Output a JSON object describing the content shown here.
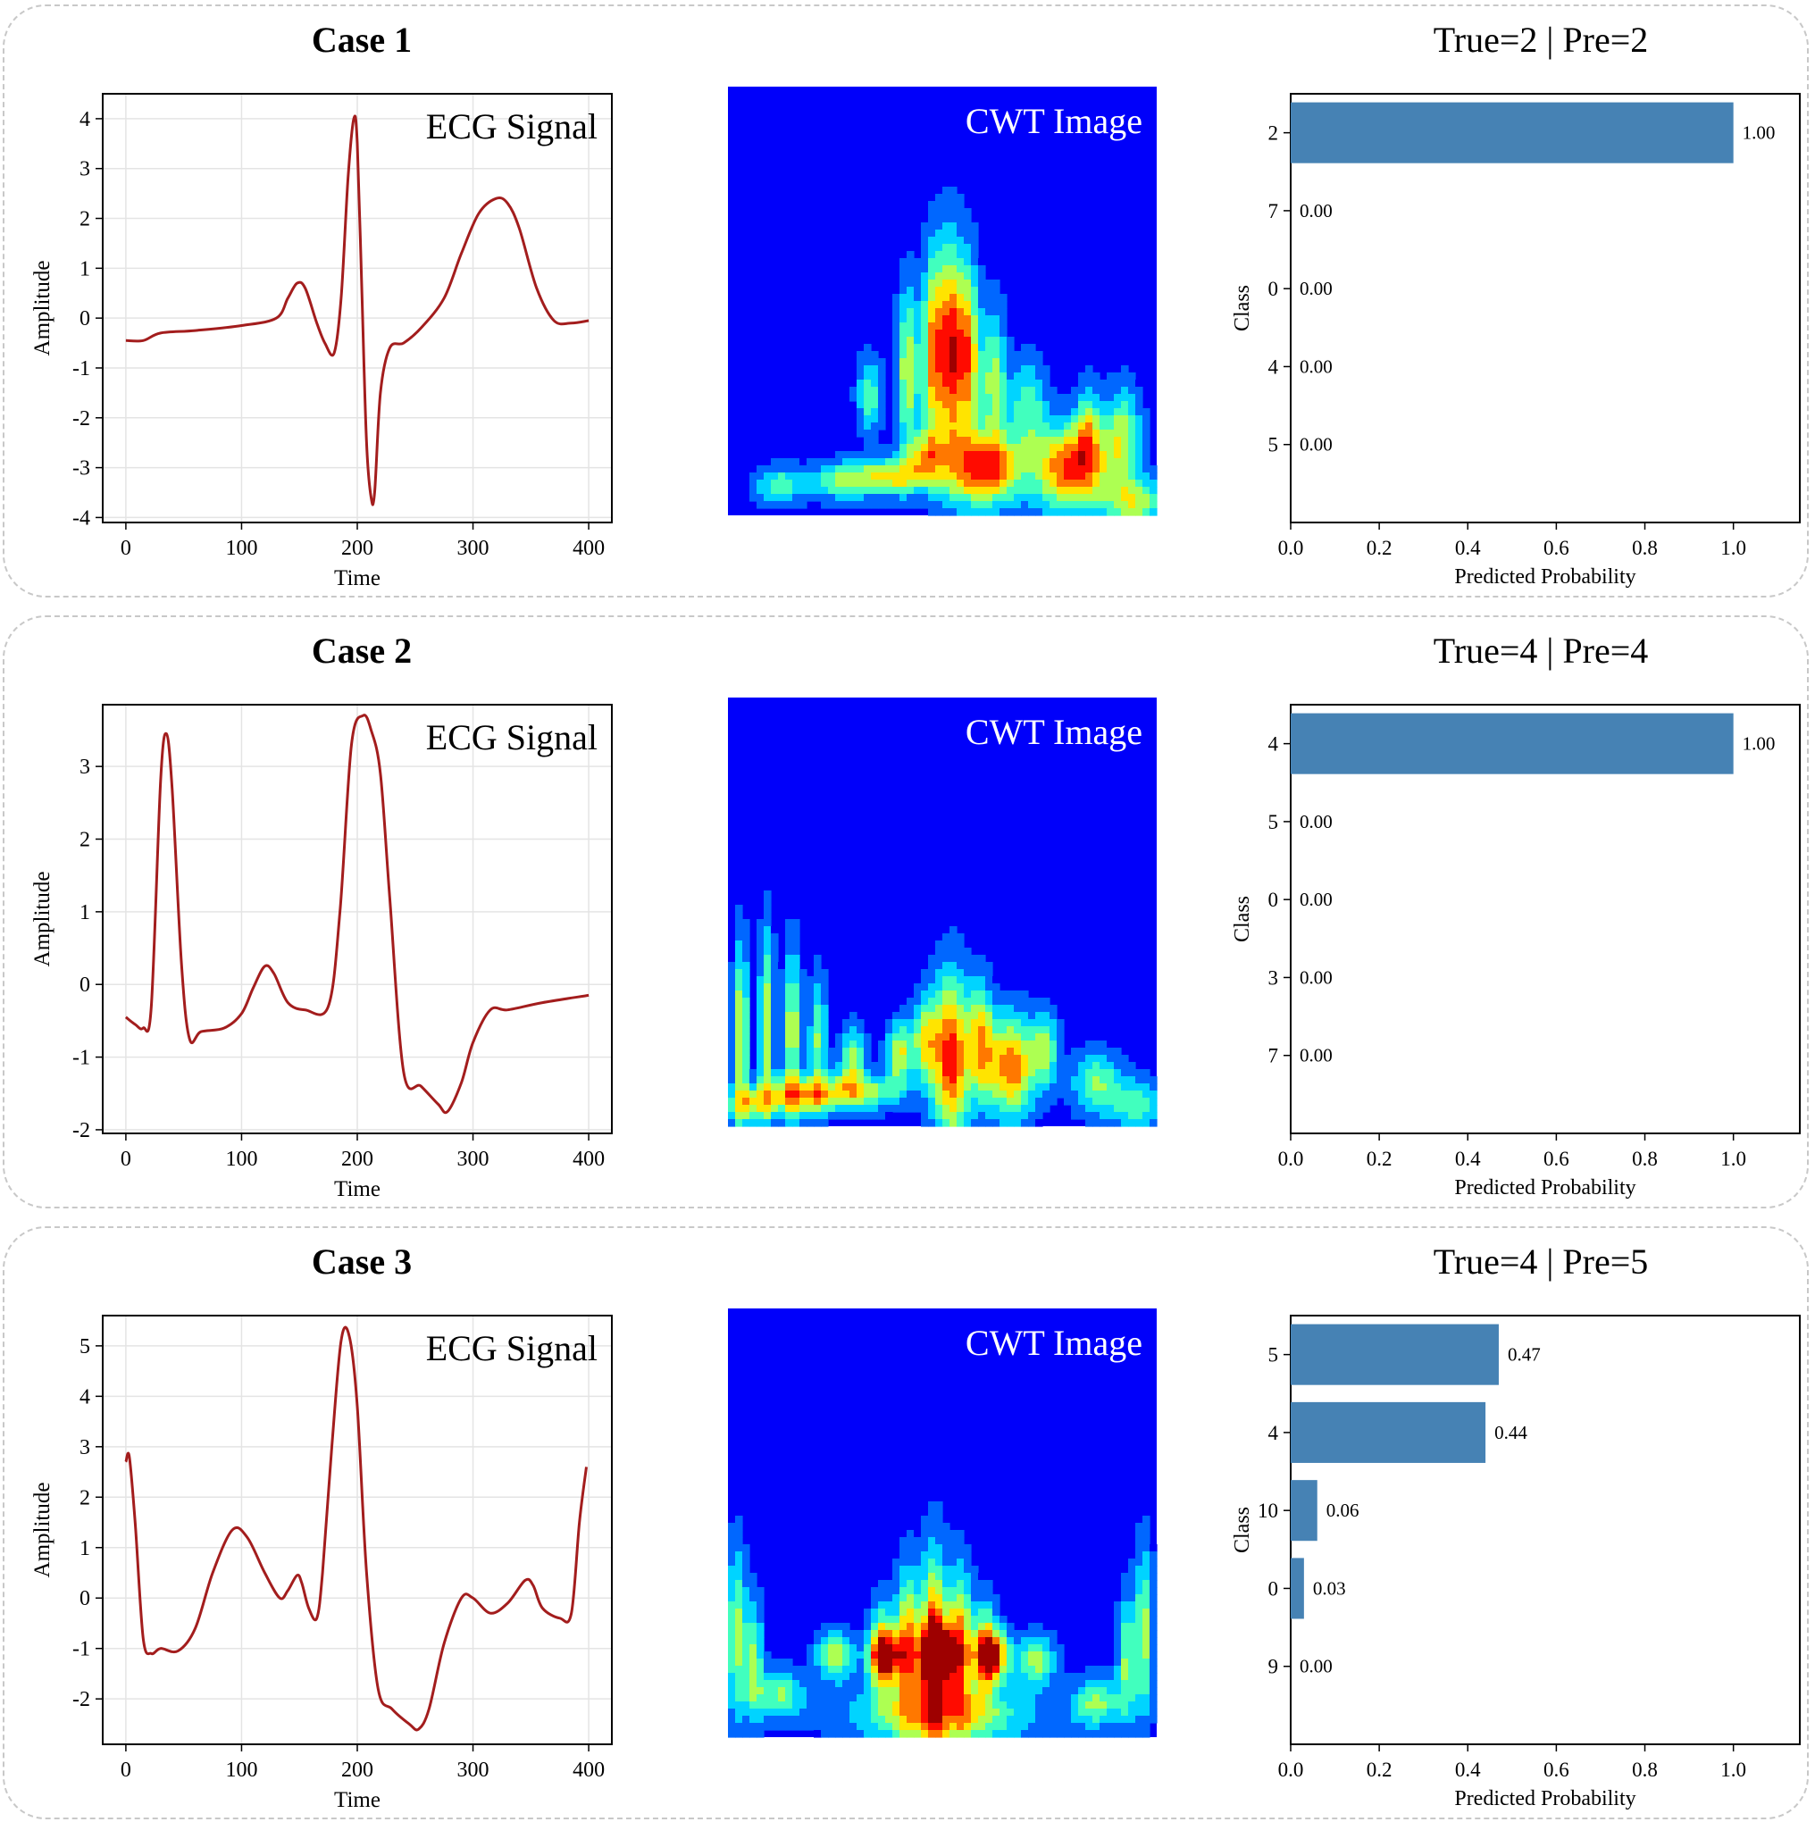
{
  "chart_data": [
    {
      "case_title": "Case 1",
      "result_title": "True=2 | Pre=2",
      "ecg": {
        "type": "line",
        "title": "ECG Signal",
        "xlabel": "Time",
        "ylabel": "Amplitude",
        "xlim": [
          -20,
          420
        ],
        "ylim": [
          -4.1,
          4.5
        ],
        "xticks": [
          "0",
          "100",
          "200",
          "300",
          "400"
        ],
        "yticks": [
          "-4",
          "-3",
          "-2",
          "-1",
          "0",
          "1",
          "2",
          "3",
          "4"
        ],
        "color": "#a31d1d",
        "x": [
          0,
          15,
          30,
          60,
          100,
          130,
          140,
          148,
          155,
          165,
          172,
          180,
          186,
          192,
          197,
          200,
          204,
          208,
          212,
          215,
          220,
          228,
          240,
          255,
          275,
          290,
          305,
          320,
          330,
          340,
          355,
          370,
          385,
          400
        ],
        "y": [
          -0.45,
          -0.45,
          -0.3,
          -0.25,
          -0.15,
          0.0,
          0.4,
          0.7,
          0.6,
          -0.1,
          -0.5,
          -0.7,
          0.4,
          2.8,
          4.0,
          3.5,
          0.5,
          -2.5,
          -3.6,
          -3.5,
          -1.5,
          -0.6,
          -0.5,
          -0.2,
          0.4,
          1.3,
          2.1,
          2.4,
          2.3,
          1.8,
          0.6,
          -0.05,
          -0.1,
          -0.05
        ]
      },
      "cwt": {
        "type": "heatmap",
        "title": "CWT Image"
      },
      "bars": {
        "type": "bar",
        "orientation": "horizontal",
        "xlabel": "Predicted Probability",
        "ylabel": "Class",
        "xlim": [
          0,
          1.15
        ],
        "xticks": [
          "0.0",
          "0.2",
          "0.4",
          "0.6",
          "0.8",
          "1.0"
        ],
        "categories": [
          "2",
          "7",
          "0",
          "4",
          "5"
        ],
        "values": [
          1.0,
          0.0,
          0.0,
          0.0,
          0.0
        ],
        "labels": [
          "1.00",
          "0.00",
          "0.00",
          "0.00",
          "0.00"
        ],
        "color": "#4682b4"
      }
    },
    {
      "case_title": "Case 2",
      "result_title": "True=4 | Pre=4",
      "ecg": {
        "type": "line",
        "title": "ECG Signal",
        "xlabel": "Time",
        "ylabel": "Amplitude",
        "xlim": [
          -20,
          420
        ],
        "ylim": [
          -2.05,
          3.85
        ],
        "xticks": [
          "0",
          "100",
          "200",
          "300",
          "400"
        ],
        "yticks": [
          "-2",
          "-1",
          "0",
          "1",
          "2",
          "3"
        ],
        "color": "#a31d1d",
        "x": [
          0,
          8,
          15,
          22,
          30,
          35,
          40,
          48,
          55,
          65,
          85,
          100,
          110,
          120,
          128,
          140,
          155,
          175,
          185,
          195,
          205,
          212,
          220,
          228,
          240,
          255,
          270,
          278,
          290,
          300,
          315,
          330,
          360,
          400
        ],
        "y": [
          -0.45,
          -0.55,
          -0.6,
          -0.3,
          2.8,
          3.45,
          2.7,
          0.3,
          -0.75,
          -0.65,
          -0.6,
          -0.4,
          -0.05,
          0.25,
          0.15,
          -0.25,
          -0.35,
          -0.3,
          1.0,
          3.3,
          3.7,
          3.5,
          2.9,
          1.2,
          -1.2,
          -1.4,
          -1.65,
          -1.75,
          -1.35,
          -0.8,
          -0.35,
          -0.35,
          -0.25,
          -0.15
        ]
      },
      "cwt": {
        "type": "heatmap",
        "title": "CWT Image"
      },
      "bars": {
        "type": "bar",
        "orientation": "horizontal",
        "xlabel": "Predicted Probability",
        "ylabel": "Class",
        "xlim": [
          0,
          1.15
        ],
        "xticks": [
          "0.0",
          "0.2",
          "0.4",
          "0.6",
          "0.8",
          "1.0"
        ],
        "categories": [
          "4",
          "5",
          "0",
          "3",
          "7"
        ],
        "values": [
          1.0,
          0.0,
          0.0,
          0.0,
          0.0
        ],
        "labels": [
          "1.00",
          "0.00",
          "0.00",
          "0.00",
          "0.00"
        ],
        "color": "#4682b4"
      }
    },
    {
      "case_title": "Case 3",
      "result_title": "True=4 | Pre=5",
      "ecg": {
        "type": "line",
        "title": "ECG Signal",
        "xlabel": "Time",
        "ylabel": "Amplitude",
        "xlim": [
          -20,
          420
        ],
        "ylim": [
          -2.9,
          5.6
        ],
        "xticks": [
          "0",
          "100",
          "200",
          "300",
          "400"
        ],
        "yticks": [
          "-2",
          "-1",
          "0",
          "1",
          "2",
          "3",
          "4",
          "5"
        ],
        "color": "#a31d1d",
        "x": [
          0,
          3,
          8,
          15,
          22,
          30,
          45,
          60,
          75,
          92,
          105,
          120,
          133,
          140,
          148,
          152,
          158,
          165,
          170,
          178,
          186,
          193,
          200,
          208,
          218,
          230,
          245,
          253,
          262,
          275,
          290,
          300,
          315,
          330,
          345,
          352,
          360,
          375,
          385,
          392,
          398
        ],
        "y": [
          2.7,
          2.8,
          1.5,
          -0.8,
          -1.1,
          -1.0,
          -1.05,
          -0.6,
          0.5,
          1.35,
          1.2,
          0.5,
          0.0,
          0.15,
          0.45,
          0.3,
          -0.2,
          -0.4,
          0.5,
          3.0,
          5.1,
          5.2,
          3.8,
          0.5,
          -1.8,
          -2.2,
          -2.5,
          -2.6,
          -2.2,
          -0.9,
          0.0,
          0.0,
          -0.3,
          -0.1,
          0.35,
          0.25,
          -0.2,
          -0.4,
          -0.3,
          1.5,
          2.6
        ]
      },
      "cwt": {
        "type": "heatmap",
        "title": "CWT Image"
      },
      "bars": {
        "type": "bar",
        "orientation": "horizontal",
        "xlabel": "Predicted Probability",
        "ylabel": "Class",
        "xlim": [
          0,
          1.15
        ],
        "xticks": [
          "0.0",
          "0.2",
          "0.4",
          "0.6",
          "0.8",
          "1.0"
        ],
        "categories": [
          "5",
          "4",
          "10",
          "0",
          "9"
        ],
        "values": [
          0.47,
          0.44,
          0.06,
          0.03,
          0.0
        ],
        "labels": [
          "0.47",
          "0.44",
          "0.06",
          "0.03",
          "0.00"
        ],
        "color": "#4682b4"
      }
    }
  ]
}
